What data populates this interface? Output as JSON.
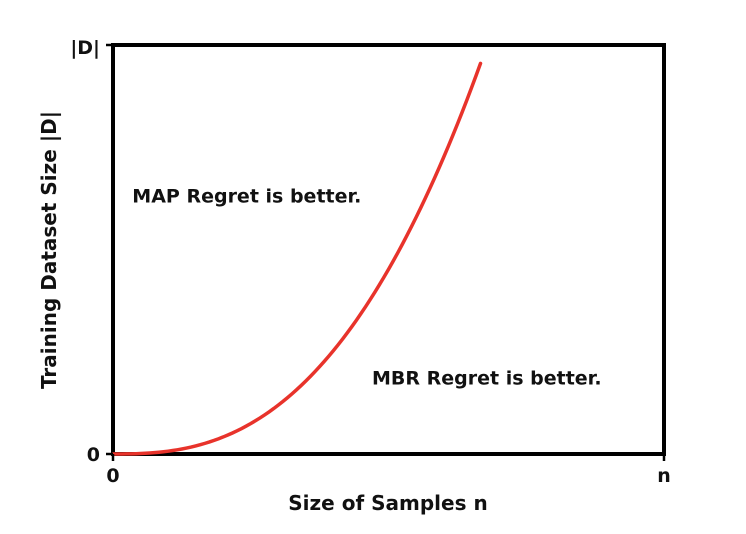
{
  "chart_data": {
    "type": "line",
    "xlabel": "Size of Samples n",
    "ylabel": "Training Dataset Size |D|",
    "x_ticks": [
      {
        "value": 0,
        "label": "0"
      },
      {
        "value": 1,
        "label": "n"
      }
    ],
    "y_ticks": [
      {
        "value": 0,
        "label": "0"
      },
      {
        "value": 1,
        "label": "|D|"
      }
    ],
    "xlim": [
      0,
      1
    ],
    "ylim": [
      0,
      1
    ],
    "grid": false,
    "curve": {
      "color": "#e8332b",
      "exponent": 2.6,
      "x_end": 0.667,
      "y_end": 0.955
    },
    "annotations": [
      {
        "text": "MAP Regret is better.",
        "x": 0.035,
        "y": 0.615
      },
      {
        "text": "MBR Regret is better.",
        "x": 0.47,
        "y": 0.17
      }
    ]
  }
}
